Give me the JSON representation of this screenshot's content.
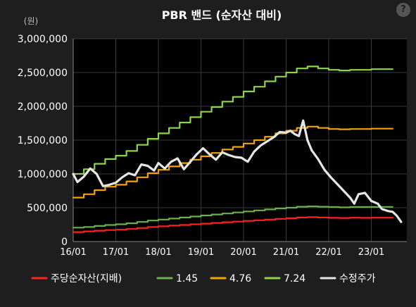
{
  "chart_data": {
    "type": "line",
    "title": "PBR 밴드 (순자산 대비)",
    "unit_label": "(원)",
    "ylim": [
      0,
      3000000
    ],
    "y_ticks": [
      0,
      500000,
      1000000,
      1500000,
      2000000,
      2500000,
      3000000
    ],
    "y_tick_labels": [
      "0",
      "500,000",
      "1,000,000",
      "1,500,000",
      "2,000,000",
      "2,500,000",
      "3,000,000"
    ],
    "x_ticks": [
      "16/01",
      "17/01",
      "18/01",
      "19/01",
      "20/01",
      "21/01",
      "22/01",
      "23/01"
    ],
    "legend_position": "bottom",
    "grid": true,
    "series": [
      {
        "name": "주당순자산(지배)",
        "color": "#ff2020",
        "points": [
          [
            0,
            140000
          ],
          [
            0.25,
            150000
          ],
          [
            0.5,
            160000
          ],
          [
            0.75,
            170000
          ],
          [
            1,
            175000
          ],
          [
            1.25,
            185000
          ],
          [
            1.5,
            200000
          ],
          [
            1.75,
            215000
          ],
          [
            2,
            225000
          ],
          [
            2.25,
            235000
          ],
          [
            2.5,
            245000
          ],
          [
            2.75,
            255000
          ],
          [
            3,
            265000
          ],
          [
            3.25,
            275000
          ],
          [
            3.5,
            285000
          ],
          [
            3.75,
            295000
          ],
          [
            4,
            305000
          ],
          [
            4.25,
            315000
          ],
          [
            4.5,
            325000
          ],
          [
            4.75,
            335000
          ],
          [
            5,
            345000
          ],
          [
            5.25,
            355000
          ],
          [
            5.5,
            360000
          ],
          [
            5.75,
            355000
          ],
          [
            6,
            350000
          ],
          [
            6.25,
            348000
          ],
          [
            6.5,
            352000
          ],
          [
            6.75,
            350000
          ],
          [
            7,
            352000
          ],
          [
            7.25,
            352000
          ],
          [
            7.5,
            352000
          ]
        ]
      },
      {
        "name": "1.45",
        "color": "#6ab04c",
        "points": [
          [
            0,
            205000
          ],
          [
            0.25,
            215000
          ],
          [
            0.5,
            230000
          ],
          [
            0.75,
            245000
          ],
          [
            1,
            255000
          ],
          [
            1.25,
            270000
          ],
          [
            1.5,
            290000
          ],
          [
            1.75,
            310000
          ],
          [
            2,
            325000
          ],
          [
            2.25,
            340000
          ],
          [
            2.5,
            355000
          ],
          [
            2.75,
            370000
          ],
          [
            3,
            385000
          ],
          [
            3.25,
            400000
          ],
          [
            3.5,
            415000
          ],
          [
            3.75,
            430000
          ],
          [
            4,
            445000
          ],
          [
            4.25,
            460000
          ],
          [
            4.5,
            475000
          ],
          [
            4.75,
            490000
          ],
          [
            5,
            500000
          ],
          [
            5.25,
            515000
          ],
          [
            5.5,
            520000
          ],
          [
            5.75,
            515000
          ],
          [
            6,
            510000
          ],
          [
            6.25,
            505000
          ],
          [
            6.5,
            510000
          ],
          [
            6.75,
            510000
          ],
          [
            7,
            510000
          ],
          [
            7.25,
            512000
          ],
          [
            7.5,
            512000
          ]
        ]
      },
      {
        "name": "4.76",
        "color": "#f0a500",
        "points": [
          [
            0,
            650000
          ],
          [
            0.25,
            700000
          ],
          [
            0.5,
            760000
          ],
          [
            0.75,
            810000
          ],
          [
            1,
            840000
          ],
          [
            1.25,
            890000
          ],
          [
            1.5,
            950000
          ],
          [
            1.75,
            1010000
          ],
          [
            2,
            1060000
          ],
          [
            2.25,
            1110000
          ],
          [
            2.5,
            1160000
          ],
          [
            2.75,
            1210000
          ],
          [
            3,
            1260000
          ],
          [
            3.25,
            1310000
          ],
          [
            3.5,
            1360000
          ],
          [
            3.75,
            1400000
          ],
          [
            4,
            1450000
          ],
          [
            4.25,
            1500000
          ],
          [
            4.5,
            1550000
          ],
          [
            4.75,
            1600000
          ],
          [
            5,
            1640000
          ],
          [
            5.25,
            1680000
          ],
          [
            5.5,
            1700000
          ],
          [
            5.75,
            1680000
          ],
          [
            6,
            1665000
          ],
          [
            6.25,
            1660000
          ],
          [
            6.5,
            1665000
          ],
          [
            6.75,
            1665000
          ],
          [
            7,
            1670000
          ],
          [
            7.25,
            1670000
          ],
          [
            7.5,
            1670000
          ]
        ]
      },
      {
        "name": "7.24",
        "color": "#8cd44a",
        "points": [
          [
            0,
            1000000
          ],
          [
            0.25,
            1070000
          ],
          [
            0.5,
            1150000
          ],
          [
            0.75,
            1220000
          ],
          [
            1,
            1270000
          ],
          [
            1.25,
            1340000
          ],
          [
            1.5,
            1430000
          ],
          [
            1.75,
            1520000
          ],
          [
            2,
            1600000
          ],
          [
            2.25,
            1680000
          ],
          [
            2.5,
            1760000
          ],
          [
            2.75,
            1840000
          ],
          [
            3,
            1920000
          ],
          [
            3.25,
            1990000
          ],
          [
            3.5,
            2070000
          ],
          [
            3.75,
            2140000
          ],
          [
            4,
            2220000
          ],
          [
            4.25,
            2290000
          ],
          [
            4.5,
            2370000
          ],
          [
            4.75,
            2440000
          ],
          [
            5,
            2500000
          ],
          [
            5.25,
            2560000
          ],
          [
            5.5,
            2590000
          ],
          [
            5.75,
            2560000
          ],
          [
            6,
            2540000
          ],
          [
            6.25,
            2530000
          ],
          [
            6.5,
            2540000
          ],
          [
            6.75,
            2540000
          ],
          [
            7,
            2550000
          ],
          [
            7.25,
            2550000
          ],
          [
            7.5,
            2550000
          ]
        ]
      },
      {
        "name": "수정주가",
        "color": "#e6e6e6",
        "points": [
          [
            0,
            1000000
          ],
          [
            0.1,
            880000
          ],
          [
            0.25,
            960000
          ],
          [
            0.4,
            1080000
          ],
          [
            0.55,
            1000000
          ],
          [
            0.7,
            820000
          ],
          [
            0.85,
            840000
          ],
          [
            1,
            870000
          ],
          [
            1.15,
            950000
          ],
          [
            1.3,
            1010000
          ],
          [
            1.45,
            980000
          ],
          [
            1.6,
            1140000
          ],
          [
            1.75,
            1120000
          ],
          [
            1.9,
            1050000
          ],
          [
            2,
            1160000
          ],
          [
            2.15,
            1080000
          ],
          [
            2.3,
            1180000
          ],
          [
            2.45,
            1230000
          ],
          [
            2.6,
            1070000
          ],
          [
            2.75,
            1180000
          ],
          [
            2.9,
            1290000
          ],
          [
            3.05,
            1380000
          ],
          [
            3.2,
            1290000
          ],
          [
            3.35,
            1210000
          ],
          [
            3.5,
            1320000
          ],
          [
            3.65,
            1280000
          ],
          [
            3.8,
            1250000
          ],
          [
            3.95,
            1240000
          ],
          [
            4.1,
            1180000
          ],
          [
            4.25,
            1330000
          ],
          [
            4.4,
            1420000
          ],
          [
            4.55,
            1480000
          ],
          [
            4.7,
            1540000
          ],
          [
            4.85,
            1620000
          ],
          [
            5,
            1610000
          ],
          [
            5.1,
            1640000
          ],
          [
            5.2,
            1590000
          ],
          [
            5.3,
            1560000
          ],
          [
            5.4,
            1790000
          ],
          [
            5.5,
            1500000
          ],
          [
            5.6,
            1350000
          ],
          [
            5.75,
            1220000
          ],
          [
            5.9,
            1060000
          ],
          [
            6.05,
            950000
          ],
          [
            6.2,
            850000
          ],
          [
            6.35,
            750000
          ],
          [
            6.5,
            650000
          ],
          [
            6.6,
            560000
          ],
          [
            6.7,
            700000
          ],
          [
            6.85,
            720000
          ],
          [
            7,
            600000
          ],
          [
            7.15,
            560000
          ],
          [
            7.25,
            480000
          ],
          [
            7.4,
            450000
          ],
          [
            7.5,
            440000
          ],
          [
            7.6,
            380000
          ],
          [
            7.7,
            290000
          ]
        ]
      }
    ]
  },
  "help": {
    "label": "?",
    "icon": "help-icon"
  }
}
